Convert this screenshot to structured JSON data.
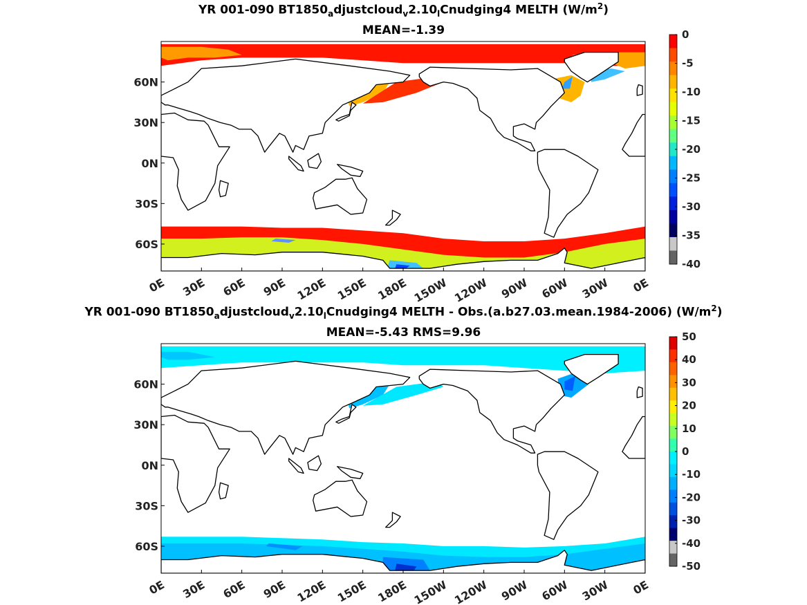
{
  "chart_data": [
    {
      "type": "heatmap",
      "title_parts": [
        "YR 001-090 BT1850",
        "a",
        "djustcloud",
        "v",
        "2.10",
        "l",
        "Cnudging4  MELTH (W/m",
        "2",
        ")"
      ],
      "subtitle": "MEAN=-1.39",
      "x_ticks": [
        "0E",
        "30E",
        "60E",
        "90E",
        "120E",
        "150E",
        "180E",
        "150W",
        "120W",
        "90W",
        "60W",
        "30W",
        "0E"
      ],
      "y_ticks": [
        "60N",
        "30N",
        "0N",
        "30S",
        "60S"
      ],
      "y_tick_lat": [
        60,
        30,
        0,
        -30,
        -60
      ],
      "lat_range": [
        -80,
        90
      ],
      "colorbar": {
        "ticks": [
          "0",
          "-5",
          "-10",
          "-15",
          "-20",
          "-25",
          "-30",
          "-35",
          "-40"
        ],
        "range": [
          -40,
          0
        ],
        "colors": [
          "#ff0000",
          "#ff4a00",
          "#ff8400",
          "#ffb400",
          "#ffe200",
          "#e6ff00",
          "#a8ff30",
          "#60ff80",
          "#20e8c8",
          "#00b8ff",
          "#0080ff",
          "#0050ff",
          "#0020e0",
          "#0000a0",
          "#000060",
          "#c8c8c8",
          "#646464"
        ]
      }
    },
    {
      "type": "heatmap",
      "title_parts": [
        "YR 001-090 BT1850",
        "a",
        "djustcloud",
        "v",
        "2.10",
        "l",
        "Cnudging4 MELTH - Obs.(a.b27.03.mean.1984-2006) (W/m",
        "2",
        ")"
      ],
      "subtitle": "MEAN=-5.43 RMS=9.96",
      "x_ticks": [
        "0E",
        "30E",
        "60E",
        "90E",
        "120E",
        "150E",
        "180E",
        "150W",
        "120W",
        "90W",
        "60W",
        "30W",
        "0E"
      ],
      "y_ticks": [
        "60N",
        "30N",
        "0N",
        "30S",
        "60S"
      ],
      "y_tick_lat": [
        60,
        30,
        0,
        -30,
        -60
      ],
      "lat_range": [
        -80,
        90
      ],
      "colorbar": {
        "ticks": [
          "50",
          "40",
          "30",
          "20",
          "10",
          "0",
          "-10",
          "-20",
          "-30",
          "-40",
          "-50"
        ],
        "range": [
          -50,
          50
        ],
        "colors": [
          "#e00000",
          "#ff3000",
          "#ff6000",
          "#ff9000",
          "#ffc000",
          "#ffee00",
          "#c8ff20",
          "#80ff60",
          "#30ffb0",
          "#00f0ff",
          "#00d8ff",
          "#00b0ff",
          "#0080ff",
          "#0050e0",
          "#0020b0",
          "#000070",
          "#c8c8c8",
          "#646464"
        ]
      }
    }
  ]
}
